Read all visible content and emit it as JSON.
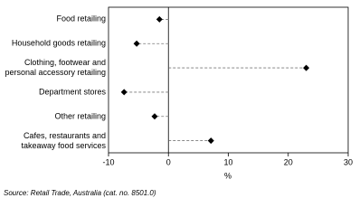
{
  "chart_data": {
    "type": "dot",
    "categories": [
      "Food retailing",
      "Household goods retailing",
      "Clothing, footwear and\npersonal accessory retailing",
      "Department stores",
      "Other retailing",
      "Cafes, restaurants and\ntakeaway food services"
    ],
    "values": [
      -1.5,
      -5.3,
      23,
      -7.4,
      -2.3,
      7.1
    ],
    "color": "#000000",
    "xlim": [
      -10,
      30
    ],
    "xticks": [
      -10,
      0,
      10,
      20,
      30
    ],
    "xlabel": "%",
    "source": "Source: Retail Trade, Australia (cat. no. 8501.0)"
  }
}
